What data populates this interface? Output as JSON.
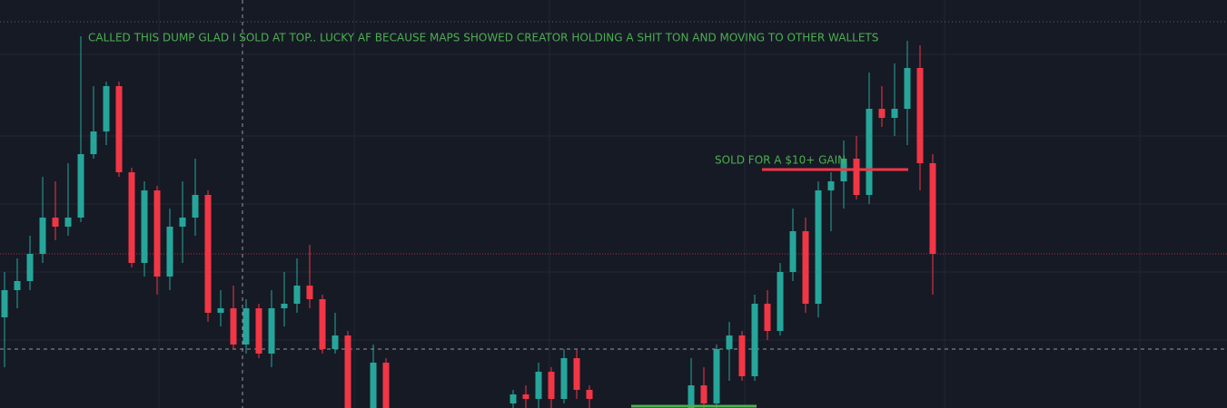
{
  "chart_data": {
    "type": "candlestick",
    "annotations": [
      "CALLED THIS DUMP GLAD I SOLD AT TOP.. LUCKY AF BECAUSE MAPS SHOWED CREATOR HOLDING A SHIT TON AND MOVING TO OTHER WALLETS",
      "SOLD FOR A $10+ GAIN"
    ],
    "up_color": "#26a69a",
    "down_color": "#f23645",
    "annotation_color": "#4caf50",
    "ylim": [
      0,
      450
    ],
    "open": [
      100,
      130,
      140,
      170,
      210,
      200,
      210,
      280,
      305,
      355,
      260,
      160,
      240,
      145,
      200,
      210,
      235,
      105,
      110,
      70,
      110,
      60,
      110,
      115,
      135,
      120,
      65,
      80,
      null,
      0,
      50,
      null,
      null,
      null,
      null,
      null,
      null,
      null,
      null,
      null,
      5,
      15,
      10,
      40,
      10,
      55,
      20,
      null,
      null,
      null,
      null,
      null,
      null,
      null,
      0,
      25,
      5,
      65,
      80,
      35,
      115,
      85,
      150,
      195,
      115,
      240,
      250,
      275,
      235,
      330,
      320,
      330,
      375,
      270
    ],
    "high": [
      150,
      165,
      190,
      255,
      250,
      270,
      410,
      355,
      360,
      360,
      265,
      250,
      245,
      220,
      250,
      275,
      240,
      130,
      135,
      120,
      115,
      130,
      150,
      165,
      180,
      125,
      105,
      85,
      null,
      70,
      55,
      null,
      null,
      null,
      null,
      null,
      null,
      null,
      null,
      null,
      20,
      25,
      50,
      45,
      65,
      65,
      25,
      null,
      null,
      null,
      null,
      null,
      null,
      null,
      55,
      45,
      70,
      95,
      85,
      125,
      130,
      160,
      220,
      210,
      250,
      260,
      295,
      300,
      370,
      355,
      380,
      405,
      400,
      280
    ],
    "low": [
      45,
      110,
      130,
      160,
      185,
      190,
      205,
      275,
      290,
      255,
      155,
      145,
      125,
      130,
      160,
      190,
      95,
      90,
      65,
      60,
      55,
      45,
      90,
      105,
      110,
      60,
      60,
      -5,
      null,
      -5,
      -5,
      null,
      null,
      null,
      null,
      null,
      null,
      null,
      null,
      null,
      0,
      0,
      0,
      0,
      5,
      10,
      0,
      null,
      null,
      null,
      null,
      null,
      null,
      null,
      -5,
      0,
      0,
      30,
      30,
      30,
      75,
      80,
      140,
      105,
      100,
      195,
      220,
      230,
      225,
      310,
      300,
      290,
      240,
      125
    ],
    "close": [
      130,
      140,
      170,
      210,
      200,
      210,
      280,
      305,
      355,
      260,
      160,
      240,
      145,
      200,
      210,
      235,
      105,
      110,
      70,
      110,
      60,
      110,
      115,
      135,
      120,
      65,
      80,
      0,
      null,
      50,
      0,
      null,
      null,
      null,
      null,
      null,
      null,
      null,
      null,
      null,
      15,
      10,
      40,
      10,
      55,
      20,
      10,
      null,
      null,
      null,
      null,
      null,
      null,
      null,
      25,
      5,
      65,
      80,
      35,
      115,
      85,
      150,
      195,
      115,
      240,
      250,
      275,
      235,
      330,
      320,
      330,
      375,
      270,
      170
    ]
  }
}
